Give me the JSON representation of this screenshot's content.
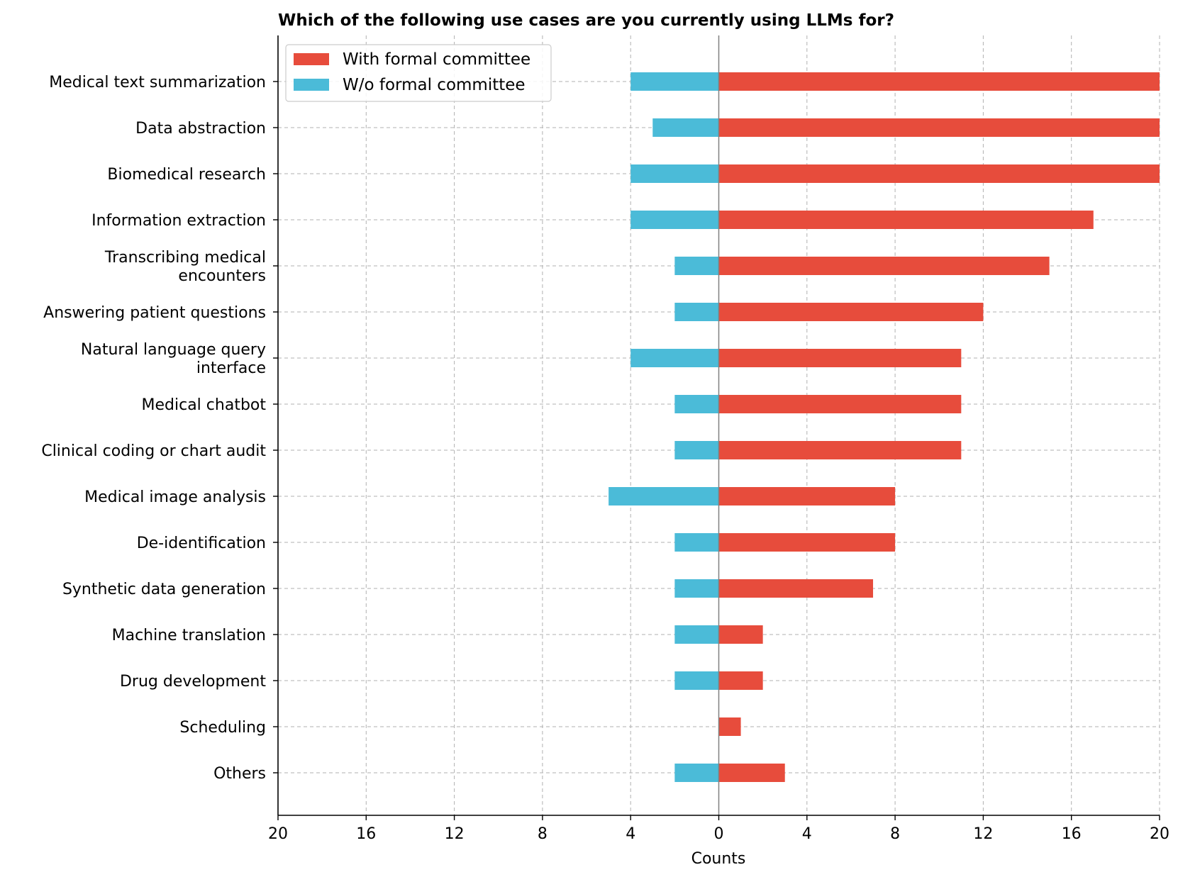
{
  "chart_data": {
    "type": "bar",
    "orientation": "horizontal-diverging",
    "title": "Which of the following use cases are you currently using LLMs for?",
    "xlabel": "Counts",
    "ylabel": "",
    "xlim": [
      -20,
      20
    ],
    "xticks": [
      -20,
      -16,
      -12,
      -8,
      -4,
      0,
      4,
      8,
      12,
      16,
      20
    ],
    "xtick_labels": [
      "20",
      "16",
      "12",
      "8",
      "4",
      "0",
      "4",
      "8",
      "12",
      "16",
      "20"
    ],
    "grid": true,
    "legend_position": "top-left",
    "categories": [
      [
        "Medical text summarization"
      ],
      [
        "Data abstraction"
      ],
      [
        "Biomedical research"
      ],
      [
        "Information extraction"
      ],
      [
        "Transcribing medical",
        "encounters"
      ],
      [
        "Answering patient questions"
      ],
      [
        "Natural language query",
        "interface"
      ],
      [
        "Medical chatbot"
      ],
      [
        "Clinical coding or chart audit"
      ],
      [
        "Medical image analysis"
      ],
      [
        "De-identification"
      ],
      [
        "Synthetic data generation"
      ],
      [
        "Machine translation"
      ],
      [
        "Drug development"
      ],
      [
        "Scheduling"
      ],
      [
        "Others"
      ]
    ],
    "series": [
      {
        "name": "With formal committee",
        "color": "#e74c3c",
        "direction": "right",
        "values": [
          20,
          20,
          20,
          17,
          15,
          12,
          11,
          11,
          11,
          8,
          8,
          7,
          2,
          2,
          1,
          3
        ]
      },
      {
        "name": "W/o formal committee",
        "color": "#4bbbd8",
        "direction": "left",
        "values": [
          4,
          3,
          4,
          4,
          2,
          2,
          4,
          2,
          2,
          5,
          2,
          2,
          2,
          2,
          0,
          2
        ]
      }
    ]
  }
}
